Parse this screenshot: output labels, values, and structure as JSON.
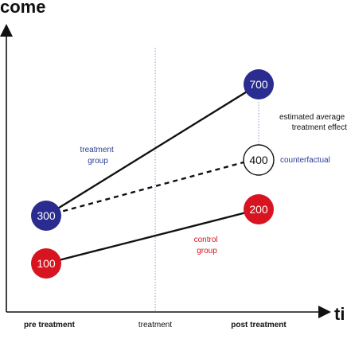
{
  "y_axis_title": "come",
  "x_axis_title": "ti",
  "x_ticks": {
    "pre": "pre treatment",
    "mid": "treatment",
    "post": "post treatment"
  },
  "nodes": {
    "treatment_pre": "300",
    "treatment_post": "700",
    "counterfactual_post": "400",
    "control_pre": "100",
    "control_post": "200"
  },
  "annotations": {
    "treatment_group": [
      "treatment",
      "group"
    ],
    "control_group": [
      "control",
      "group"
    ],
    "counterfactual": "counterfactual",
    "effect": [
      "estimated average",
      "treatment effect"
    ]
  },
  "colors": {
    "treatment": "#2a2d8f",
    "control": "#d7141f",
    "counterfactual_fill": "#ffffff",
    "text_blue": "#2a3c93",
    "text_red": "#d7141f",
    "axis": "#111111"
  }
}
